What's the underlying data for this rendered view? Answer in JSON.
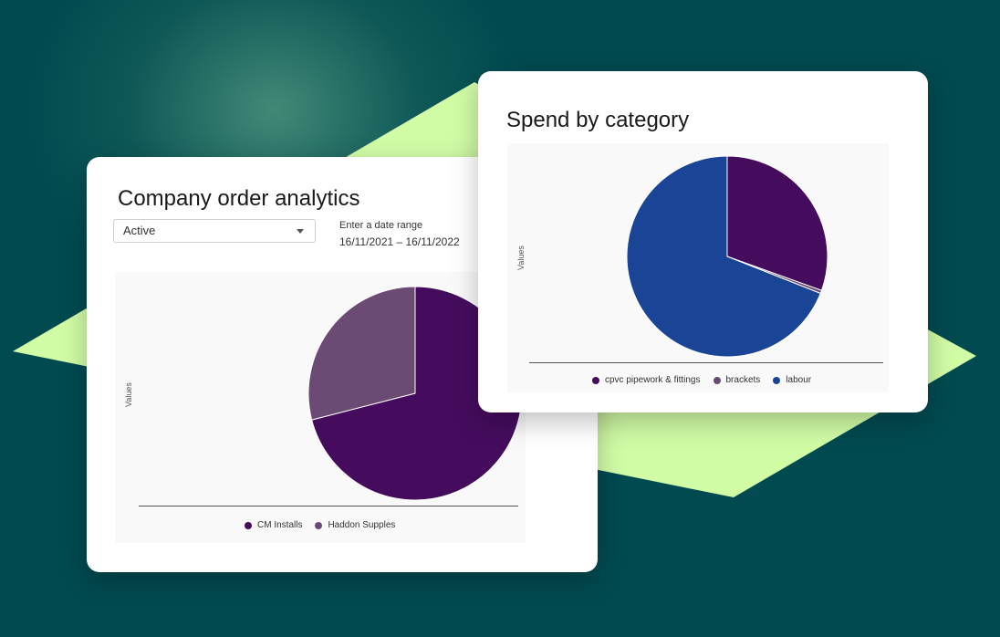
{
  "colors": {
    "background": "#004a50",
    "accent_green": "#d1fca6",
    "cm_installs": "#450c5e",
    "haddon_supples": "#6b4a74",
    "cpvc": "#450c5e",
    "brackets": "#6b4a74",
    "labour": "#1a4596"
  },
  "left_card": {
    "title": "Company order analytics",
    "filter": {
      "selected": "Active",
      "icon": "chevron-down-icon"
    },
    "date_range": {
      "label": "Enter a date range",
      "value": "16/11/2021 – 16/11/2022"
    }
  },
  "right_card": {
    "title": "Spend by category"
  },
  "chart_data": [
    {
      "type": "pie",
      "title": "Company order analytics",
      "ylabel": "Values",
      "legend_position": "bottom",
      "categories": [
        "CM Installs",
        "Haddon Supples"
      ],
      "values": [
        71,
        29
      ],
      "colors": [
        "#450c5e",
        "#6b4a74"
      ]
    },
    {
      "type": "pie",
      "title": "Spend by category",
      "ylabel": "Values",
      "legend_position": "bottom",
      "categories": [
        "cpvc pipework & fittings",
        "brackets",
        "labour"
      ],
      "values": [
        30.5,
        0.5,
        69
      ],
      "colors": [
        "#450c5e",
        "#6b4a74",
        "#1a4596"
      ]
    }
  ]
}
